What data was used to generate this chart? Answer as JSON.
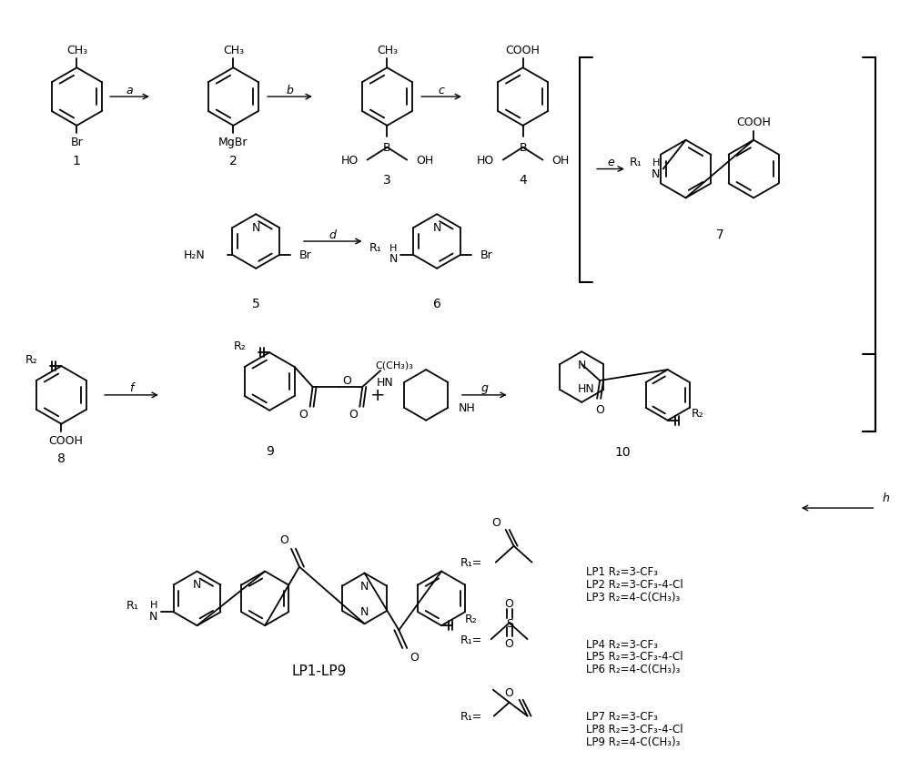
{
  "bg_color": "#ffffff",
  "figsize": [
    10.0,
    8.37
  ],
  "dpi": 100,
  "lp_labels": [
    [
      "LP1 R₂=3-CF₃",
      "LP2 R₂=3-CF₃-4-Cl",
      "LP3 R₂=4-C(CH₃)₃"
    ],
    [
      "LP4 R₂=3-CF₃",
      "LP5 R₂=3-CF₃-4-Cl",
      "LP6 R₂=4-C(CH₃)₃"
    ],
    [
      "LP7 R₂=3-CF₃",
      "LP8 R₂=3-CF₃-4-Cl",
      "LP9 R₂=4-C(CH₃)₃"
    ]
  ]
}
